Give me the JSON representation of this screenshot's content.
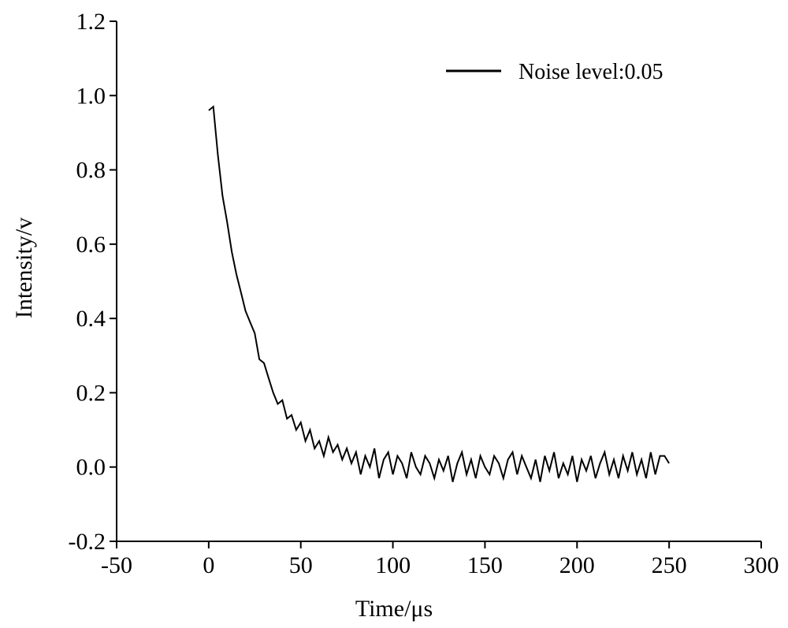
{
  "chart_data": {
    "type": "line",
    "xlabel": "Time/μs",
    "ylabel": "Intensity/v",
    "xlim": [
      -50,
      300
    ],
    "xticks": [
      -50,
      0,
      50,
      100,
      150,
      200,
      250,
      300
    ],
    "ylim": [
      -0.2,
      1.2
    ],
    "yticks": [
      -0.2,
      {
        "value": 0,
        "label": "0.0"
      },
      0.2,
      0.4,
      0.6,
      0.8,
      {
        "value": 1,
        "label": "1.0"
      },
      1.2
    ],
    "legend": "upper right",
    "x": [
      0,
      2.5,
      5,
      7.5,
      10,
      12.5,
      15,
      17.5,
      20,
      22.5,
      25,
      27.5,
      30,
      32.5,
      35,
      37.5,
      40,
      42.5,
      45,
      47.5,
      50,
      52.5,
      55,
      57.5,
      60,
      62.5,
      65,
      67.5,
      70,
      72.5,
      75,
      77.5,
      80,
      82.5,
      85,
      87.5,
      90,
      92.5,
      95,
      97.5,
      100,
      102.5,
      105,
      107.5,
      110,
      112.5,
      115,
      117.5,
      120,
      122.5,
      125,
      127.5,
      130,
      132.5,
      135,
      137.5,
      140,
      142.5,
      145,
      147.5,
      150,
      152.5,
      155,
      157.5,
      160,
      162.5,
      165,
      167.5,
      170,
      172.5,
      175,
      177.5,
      180,
      182.5,
      185,
      187.5,
      190,
      192.5,
      195,
      197.5,
      200,
      202.5,
      205,
      207.5,
      210,
      212.5,
      215,
      217.5,
      220,
      222.5,
      225,
      227.5,
      230,
      232.5,
      235,
      237.5,
      240,
      242.5,
      245,
      247.5,
      250
    ],
    "series": [
      {
        "name": "Noise level:0.05",
        "color": "#000000",
        "values": [
          0.96,
          0.97,
          0.84,
          0.73,
          0.66,
          0.58,
          0.52,
          0.47,
          0.42,
          0.39,
          0.36,
          0.29,
          0.28,
          0.24,
          0.2,
          0.17,
          0.18,
          0.13,
          0.14,
          0.1,
          0.12,
          0.07,
          0.1,
          0.05,
          0.07,
          0.03,
          0.08,
          0.04,
          0.06,
          0.02,
          0.05,
          0.01,
          0.04,
          -0.02,
          0.03,
          0.0,
          0.05,
          -0.03,
          0.02,
          0.04,
          -0.02,
          0.03,
          0.01,
          -0.03,
          0.04,
          0.0,
          -0.02,
          0.03,
          0.01,
          -0.03,
          0.02,
          -0.01,
          0.03,
          -0.04,
          0.01,
          0.04,
          -0.02,
          0.02,
          -0.03,
          0.03,
          0.0,
          -0.02,
          0.03,
          0.01,
          -0.03,
          0.02,
          0.04,
          -0.02,
          0.03,
          0.0,
          -0.03,
          0.02,
          -0.04,
          0.03,
          -0.01,
          0.04,
          -0.03,
          0.01,
          -0.02,
          0.03,
          -0.04,
          0.02,
          -0.01,
          0.03,
          -0.03,
          0.01,
          0.04,
          -0.02,
          0.02,
          -0.03,
          0.03,
          -0.01,
          0.04,
          -0.02,
          0.02,
          -0.03,
          0.04,
          -0.02,
          0.03,
          0.03,
          0.01
        ]
      }
    ]
  }
}
